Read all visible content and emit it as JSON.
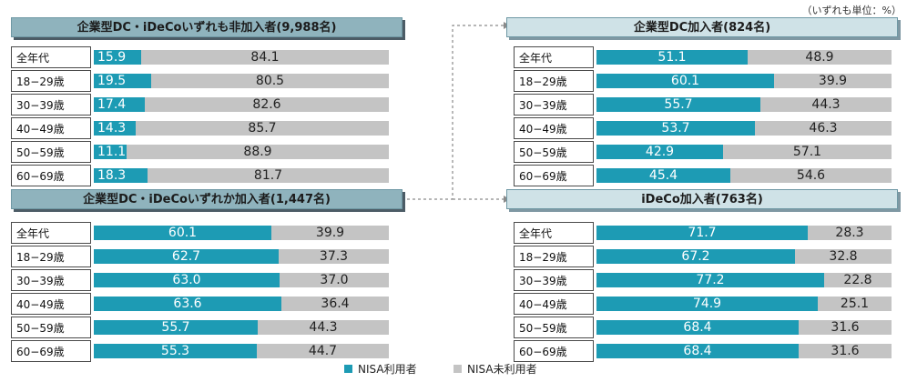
{
  "unit_note": "（いずれも単位：%）",
  "legend": [
    {
      "label": "NISA利用者",
      "color": "#1d9bb4"
    },
    {
      "label": "NISA未利用者",
      "color": "#c4c4c4"
    }
  ],
  "chart_data": [
    {
      "type": "bar",
      "stacked": true,
      "orientation": "horizontal",
      "title": "企業型DC・iDeCoいずれも非加入者(9,988名)",
      "categories": [
        "全年代",
        "18−29歳",
        "30−39歳",
        "40−49歳",
        "50−59歳",
        "60−69歳"
      ],
      "series": [
        {
          "name": "NISA利用者",
          "values": [
            "15.9",
            "19.5",
            "17.4",
            "14.3",
            "11.1",
            "18.3"
          ]
        },
        {
          "name": "NISA未利用者",
          "values": [
            "84.1",
            "80.5",
            "82.6",
            "85.7",
            "88.9",
            "81.7"
          ]
        }
      ],
      "xlim": [
        0,
        100
      ]
    },
    {
      "type": "bar",
      "stacked": true,
      "orientation": "horizontal",
      "title": "企業型DC・iDeCoいずれか加入者(1,447名)",
      "categories": [
        "全年代",
        "18−29歳",
        "30−39歳",
        "40−49歳",
        "50−59歳",
        "60−69歳"
      ],
      "series": [
        {
          "name": "NISA利用者",
          "values": [
            "60.1",
            "62.7",
            "63.0",
            "63.6",
            "55.7",
            "55.3"
          ]
        },
        {
          "name": "NISA未利用者",
          "values": [
            "39.9",
            "37.3",
            "37.0",
            "36.4",
            "44.3",
            "44.7"
          ]
        }
      ],
      "xlim": [
        0,
        100
      ]
    },
    {
      "type": "bar",
      "stacked": true,
      "orientation": "horizontal",
      "title": "企業型DC加入者(824名)",
      "categories": [
        "全年代",
        "18−29歳",
        "30−39歳",
        "40−49歳",
        "50−59歳",
        "60−69歳"
      ],
      "series": [
        {
          "name": "NISA利用者",
          "values": [
            "51.1",
            "60.1",
            "55.7",
            "53.7",
            "42.9",
            "45.4"
          ]
        },
        {
          "name": "NISA未利用者",
          "values": [
            "48.9",
            "39.9",
            "44.3",
            "46.3",
            "57.1",
            "54.6"
          ]
        }
      ],
      "xlim": [
        0,
        100
      ]
    },
    {
      "type": "bar",
      "stacked": true,
      "orientation": "horizontal",
      "title": "iDeCo加入者(763名)",
      "categories": [
        "全年代",
        "18−29歳",
        "30−39歳",
        "40−49歳",
        "50−59歳",
        "60−69歳"
      ],
      "series": [
        {
          "name": "NISA利用者",
          "values": [
            "71.7",
            "67.2",
            "77.2",
            "74.9",
            "68.4",
            "68.4"
          ]
        },
        {
          "name": "NISA未利用者",
          "values": [
            "28.3",
            "32.8",
            "22.8",
            "25.1",
            "31.6",
            "31.6"
          ]
        }
      ],
      "xlim": [
        0,
        100
      ]
    }
  ]
}
